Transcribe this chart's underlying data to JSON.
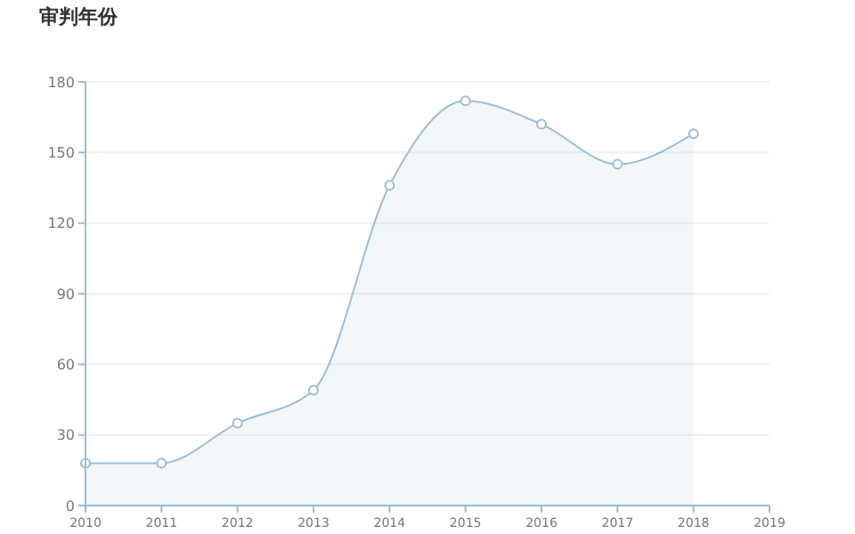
{
  "chart_data": {
    "type": "area",
    "title": "审判年份",
    "x": [
      2010,
      2011,
      2012,
      2013,
      2014,
      2015,
      2016,
      2017,
      2018
    ],
    "series": [
      {
        "color": "#9bbcd6",
        "values": [
          18,
          18,
          35,
          49,
          136,
          172,
          162,
          145,
          158
        ]
      }
    ],
    "xlim": [
      2010,
      2019
    ],
    "xticks": [
      2010,
      2011,
      2012,
      2013,
      2014,
      2015,
      2016,
      2017,
      2018,
      2019
    ],
    "ylim": [
      0,
      180
    ],
    "yticks": [
      0,
      30,
      60,
      90,
      120,
      150,
      180
    ],
    "grid": "y",
    "marker": "circle"
  }
}
